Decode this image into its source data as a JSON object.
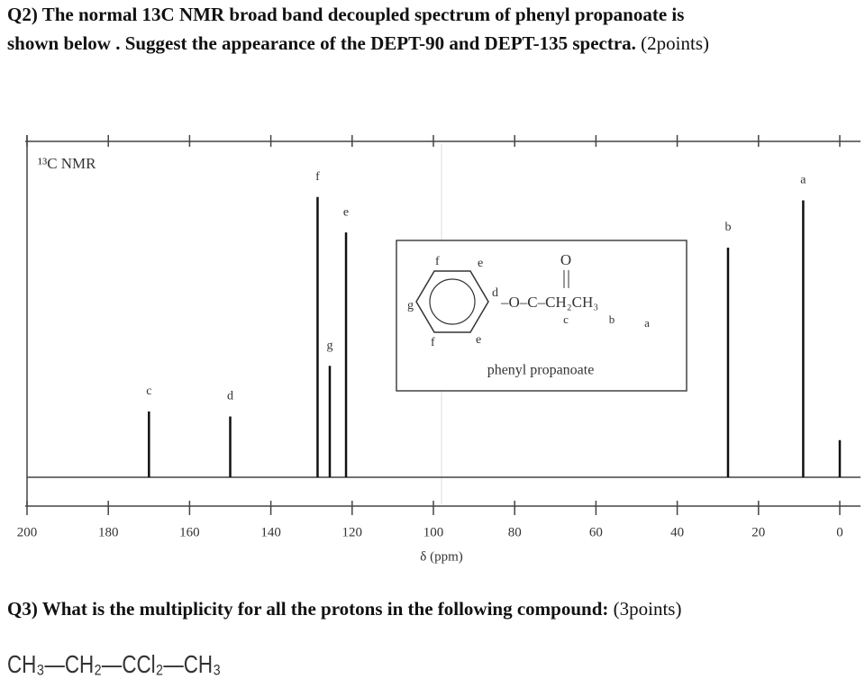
{
  "q2": {
    "lines": [
      "Q2) The normal 13C NMR  broad band decoupled spectrum of phenyl propanoate is",
      "shown below . Suggest the appearance of the DEPT-90 and DEPT-135 spectra."
    ],
    "points": "(2points)"
  },
  "chart_data": {
    "type": "stem",
    "title": "¹³C NMR",
    "x_label": "δ (ppm)",
    "x": [
      170,
      150,
      128.5,
      125.5,
      121.5,
      27.5,
      9,
      0
    ],
    "values": [
      19.5,
      18,
      83,
      33,
      72.5,
      68,
      82,
      11
    ],
    "peak_labels": [
      "c",
      "d",
      "f",
      "g",
      "e",
      "b",
      "a",
      null
    ],
    "color": "#111111",
    "xlim": [
      200,
      0
    ],
    "xticks": [
      200,
      180,
      160,
      140,
      120,
      100,
      80,
      60,
      40,
      20,
      0
    ],
    "ylim": [
      0,
      100
    ],
    "inset": {
      "ring_labels": [
        "f",
        "e",
        "g",
        "d",
        "f",
        "e"
      ],
      "carbonyl_o": "O",
      "chain": "–O–C–CH₂CH₃",
      "chain_labels": [
        "c",
        "b",
        "a"
      ],
      "name": "phenyl propanoate"
    }
  },
  "q3": {
    "text": "Q3) What is the multiplicity for all the protons in the following compound:",
    "points": "(3points)",
    "formula": "CH₃—CH₂—CCl₂—CH₃"
  }
}
